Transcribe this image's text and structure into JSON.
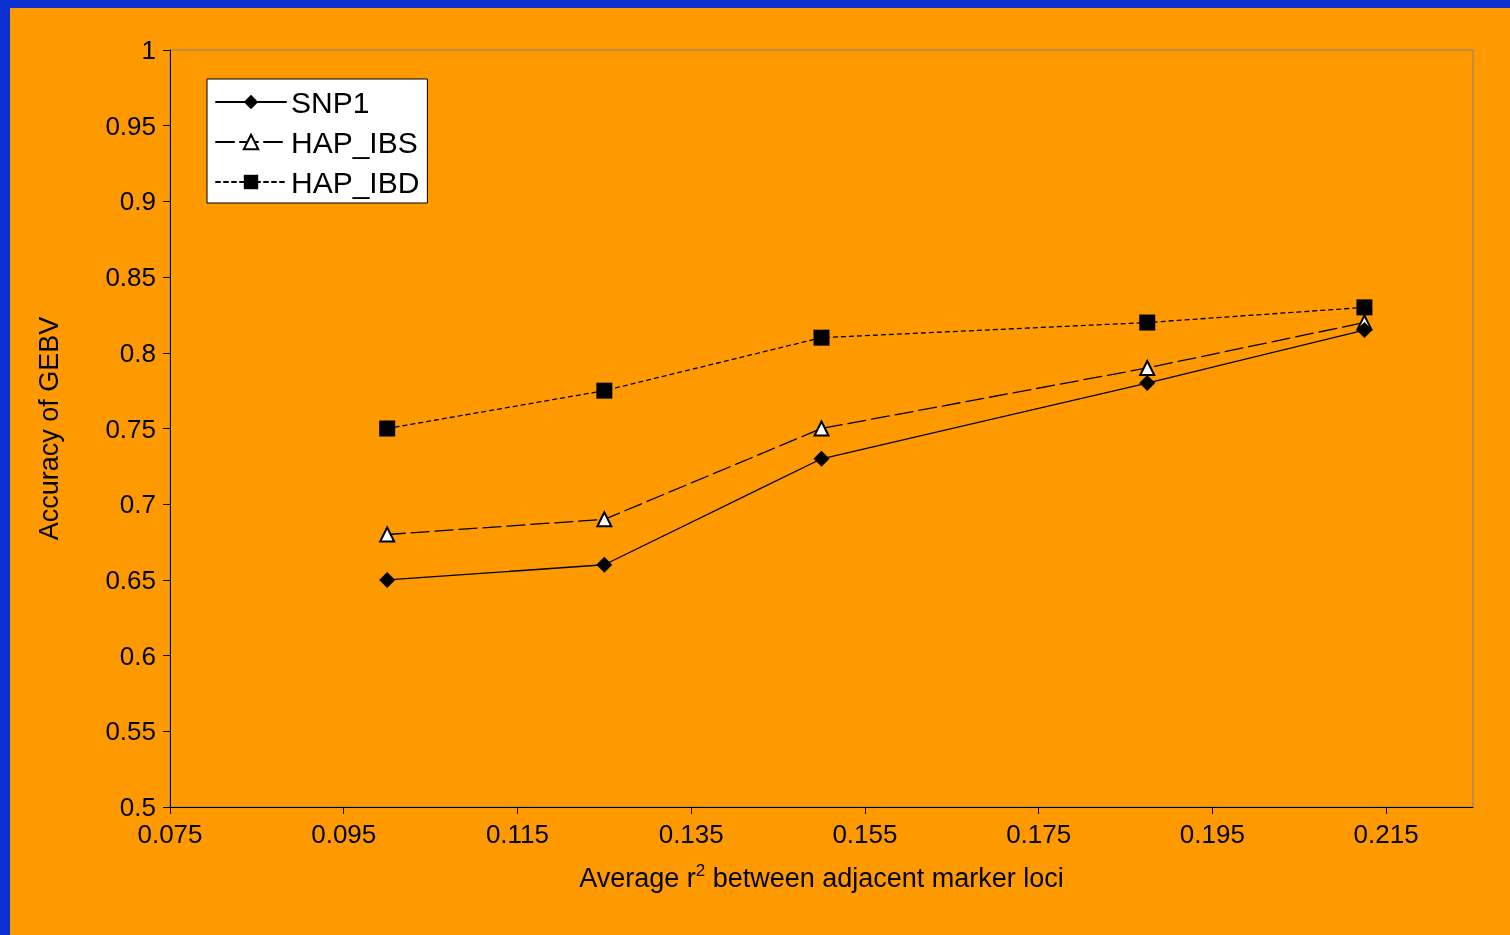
{
  "chart_data": {
    "type": "line",
    "xlabel": "Average r$^{2}$ between adjacent marker loci",
    "ylabel": "Accuracy of GEBV",
    "x": [
      0.1,
      0.125,
      0.15,
      0.1875,
      0.2125
    ],
    "series": [
      {
        "name": "SNP1",
        "color": "#000000",
        "marker": "diamond",
        "line_style": "solid",
        "values": [
          0.65,
          0.66,
          0.73,
          0.78,
          0.815
        ]
      },
      {
        "name": "HAP_IBS",
        "color": "#000000",
        "marker": "triangle",
        "line_style": "dashed",
        "values": [
          0.68,
          0.69,
          0.75,
          0.79,
          0.82
        ]
      },
      {
        "name": "HAP_IBD",
        "color": "#000000",
        "marker": "square",
        "line_style": "dotted",
        "values": [
          0.75,
          0.775,
          0.81,
          0.82,
          0.83
        ]
      }
    ],
    "xlim": [
      0.075,
      0.225
    ],
    "xticks": [
      0.075,
      0.095,
      0.115,
      0.135,
      0.155,
      0.175,
      0.195,
      0.215
    ],
    "ylim": [
      0.5,
      1
    ],
    "yticks": [
      0.5,
      0.55,
      0.6,
      0.65,
      0.7,
      0.75,
      0.8,
      0.85,
      0.9,
      0.95,
      1
    ],
    "grid": false,
    "legend": "top left"
  }
}
